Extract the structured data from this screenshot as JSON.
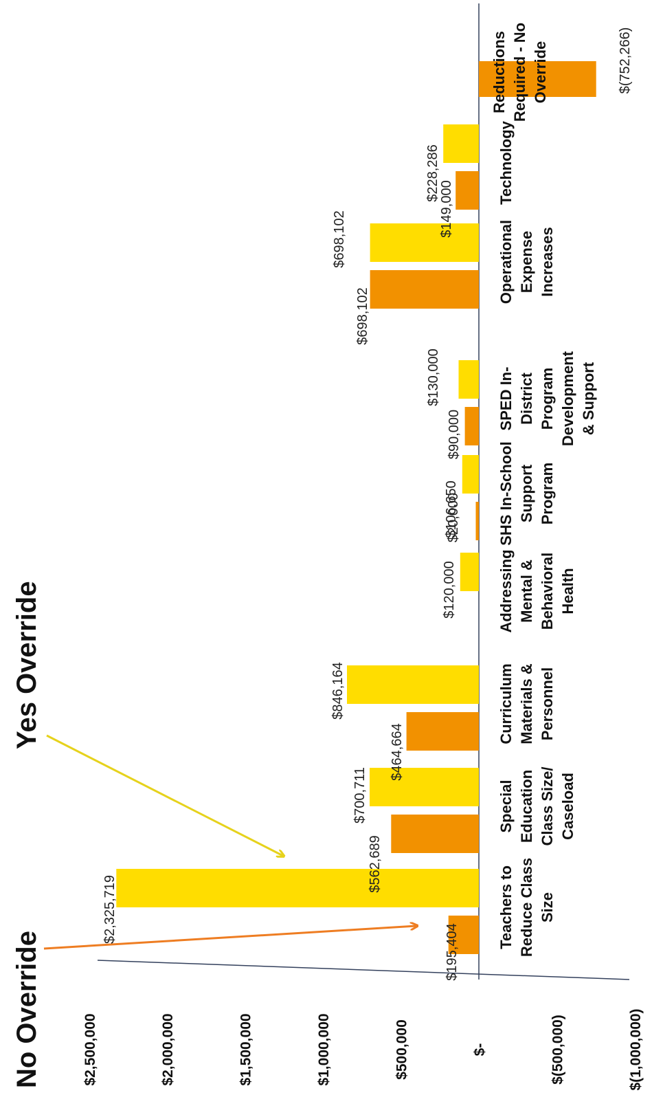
{
  "chart_data": {
    "type": "bar",
    "orientation": "rotated",
    "callouts": {
      "no_override": "No Override",
      "yes_override": "Yes Override"
    },
    "categories": [
      [
        "Teachers to",
        "Reduce Class",
        "Size"
      ],
      [
        "Special",
        "Education",
        "Class Size/",
        "Caseload"
      ],
      [
        "Curriculum",
        "Materials &",
        "Personnel"
      ],
      [
        "Addressing",
        "Mental &",
        "Behavioral",
        "Health"
      ],
      [
        "SHS In-School",
        "Support",
        "Program"
      ],
      [
        "SPED In-",
        "District",
        "Program",
        "Development",
        "& Support"
      ],
      [
        "Operational",
        "Expense",
        "Increases"
      ],
      [
        "Technology"
      ],
      [
        "Reductions",
        "Required - No",
        "Override"
      ]
    ],
    "series": [
      {
        "name": "No Override",
        "color": "#F29100",
        "values": [
          195404,
          562689,
          464664,
          null,
          20000,
          90000,
          698102,
          149000,
          -752266
        ],
        "labels": [
          "$195,404",
          "$562,689",
          "$464,664",
          "",
          "$20,000",
          "$90,000",
          "$698,102",
          "$149,000",
          "$(752,266)"
        ]
      },
      {
        "name": "Yes Override",
        "color": "#FFDD00",
        "values": [
          2325719,
          700711,
          846164,
          120000,
          106650,
          130000,
          698102,
          228286,
          null
        ],
        "labels": [
          "$2,325,719",
          "$700,711",
          "$846,164",
          "$120,000",
          "$106,650",
          "$130,000",
          "$698,102",
          "$228,286",
          ""
        ]
      }
    ],
    "value_axis": {
      "ylim": [
        -1000000,
        2500000
      ],
      "ticks": [
        2500000,
        2000000,
        1500000,
        1000000,
        500000,
        0,
        -500000,
        -1000000
      ],
      "tick_labels": [
        "$2,500,000",
        "$2,000,000",
        "$1,500,000",
        "$1,000,000",
        "$500,000",
        "$-",
        "$(500,000)",
        "$(1,000,000)"
      ]
    },
    "grid": false,
    "legend": "none",
    "colors": {
      "no_override": "#F29100",
      "yes_override": "#FFDD00",
      "no_arrow": "#EE7D22",
      "yes_arrow": "#E6D21C",
      "axis": "#33405C"
    }
  }
}
